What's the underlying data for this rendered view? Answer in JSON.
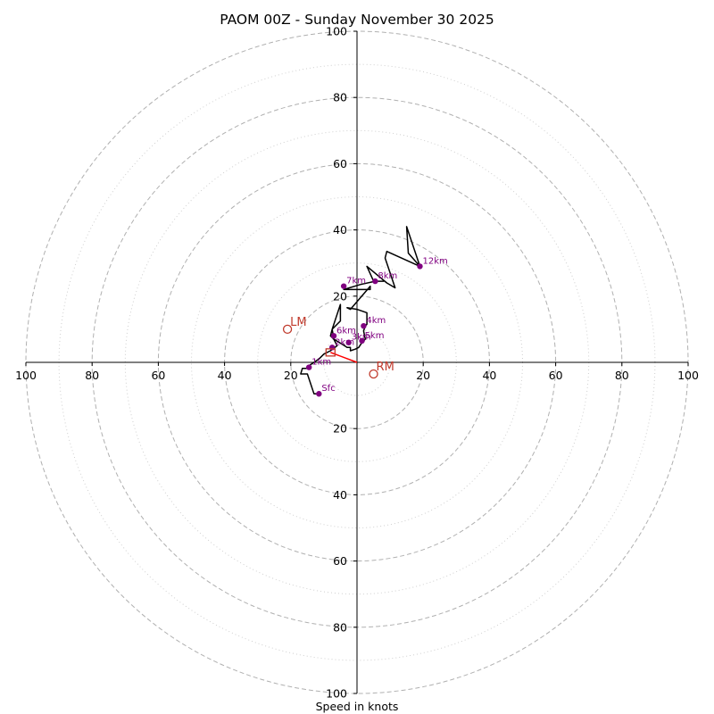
{
  "chart_data": {
    "type": "hodograph",
    "title": "PAOM 00Z - Sunday November 30 2025",
    "xlabel": "Speed in knots",
    "units": "knots",
    "xlim": [
      -100,
      100
    ],
    "ylim": [
      -100,
      100
    ],
    "rings": {
      "dashed": [
        20,
        40,
        60,
        80,
        100
      ],
      "dotted": [
        10,
        30,
        50,
        70,
        90
      ]
    },
    "tick_values": [
      100,
      80,
      60,
      40,
      20
    ],
    "tick_labels": {
      "x_left": [
        "100",
        "80",
        "60",
        "40",
        "20"
      ],
      "x_right": [
        "20",
        "40",
        "60",
        "80",
        "100"
      ],
      "y_top": [
        "20",
        "40",
        "60",
        "80",
        "100"
      ],
      "y_bottom": [
        "20",
        "40",
        "60",
        "80",
        "100"
      ]
    },
    "trace": [
      [
        -11.5,
        -9.5
      ],
      [
        -13,
        -9.5
      ],
      [
        -15,
        -3.5
      ],
      [
        -17,
        -3.5
      ],
      [
        -16.5,
        -1.8
      ],
      [
        -14,
        -1.8
      ],
      [
        -14.5,
        -1
      ],
      [
        -11.5,
        1
      ],
      [
        -10,
        2.5
      ],
      [
        -8,
        3.5
      ],
      [
        -6,
        5
      ],
      [
        -7,
        7
      ],
      [
        -8,
        8
      ],
      [
        -7.5,
        10
      ],
      [
        -5,
        12.5
      ],
      [
        -5,
        17.5
      ],
      [
        -7.5,
        10
      ],
      [
        -7,
        7
      ],
      [
        -4.5,
        5.5
      ],
      [
        -3,
        4.5
      ],
      [
        -2,
        4.5
      ],
      [
        -2,
        3.5
      ],
      [
        -0.5,
        4
      ],
      [
        0.5,
        4.5
      ],
      [
        1.5,
        6
      ],
      [
        2.5,
        7
      ],
      [
        2,
        9.5
      ],
      [
        2.5,
        11
      ],
      [
        3,
        11.5
      ],
      [
        3,
        15
      ],
      [
        0,
        16
      ],
      [
        -3,
        16.5
      ],
      [
        -2,
        16
      ],
      [
        4,
        23
      ],
      [
        4,
        22
      ],
      [
        -4,
        22
      ],
      [
        1,
        23.5
      ],
      [
        5.5,
        24.5
      ],
      [
        8,
        24.5
      ],
      [
        5,
        24.5
      ],
      [
        3,
        29
      ],
      [
        9,
        24
      ],
      [
        11.5,
        22.5
      ],
      [
        8.5,
        31.5
      ],
      [
        9,
        33.5
      ],
      [
        19,
        29
      ],
      [
        15.5,
        33
      ],
      [
        15,
        41
      ],
      [
        19,
        29
      ]
    ],
    "height_markers": [
      {
        "label": "Sfc",
        "u": -11.5,
        "v": -9.5
      },
      {
        "label": "1km",
        "u": -14.5,
        "v": -1.5
      },
      {
        "label": "2km",
        "u": -7.5,
        "v": 4.5
      },
      {
        "label": "3km",
        "u": -2.5,
        "v": 6
      },
      {
        "label": "4km",
        "u": 2,
        "v": 11
      },
      {
        "label": "5km",
        "u": 1.5,
        "v": 6.5
      },
      {
        "label": "6km",
        "u": -7,
        "v": 8
      },
      {
        "label": "7km",
        "u": -4,
        "v": 23
      },
      {
        "label": "8km",
        "u": 5.5,
        "v": 24.5
      },
      {
        "label": "12km",
        "u": 19,
        "v": 29
      }
    ],
    "storm_motion": {
      "mean_wind": {
        "u": -8,
        "v": 3
      },
      "right_mover": {
        "label": "RM",
        "u": 5,
        "v": -3.5
      },
      "left_mover": {
        "label": "LM",
        "u": -21,
        "v": 10
      }
    },
    "colors": {
      "trace": "#000000",
      "markers": "#800080",
      "storm_motion": "#c0392b",
      "shear_vector": "#ff0000",
      "rings": "#b0b0b0",
      "axes": "#000000"
    }
  }
}
